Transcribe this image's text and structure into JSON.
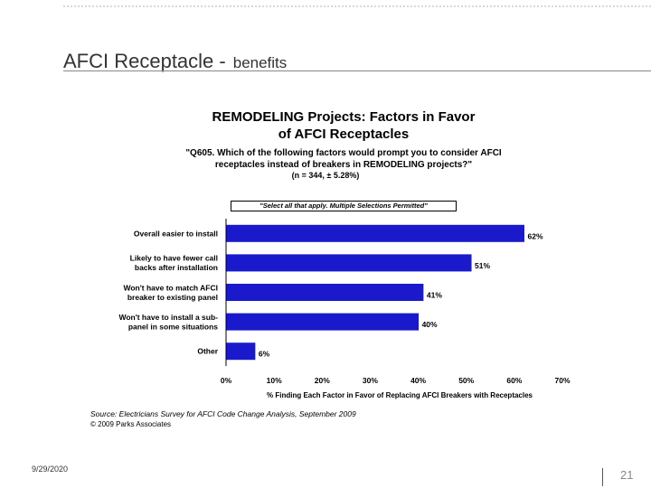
{
  "slide": {
    "title": "AFCI Receptacle -",
    "subtitle": "benefits",
    "date": "9/29/2020",
    "page_number": "21"
  },
  "chart_data": {
    "type": "bar",
    "orientation": "horizontal",
    "title_line1": "REMODELING Projects: Factors in Favor",
    "title_line2": "of AFCI Receptacles",
    "question_line1": "\"Q605. Which of the following factors would prompt you to consider AFCI",
    "question_line2": "receptacles instead of breakers in REMODELING projects?\"",
    "sample": "(n = 344, ± 5.28%)",
    "note": "\"Select all that apply. Multiple Selections Permitted\"",
    "categories": [
      [
        "Overall easier to install"
      ],
      [
        "Likely to have fewer call",
        "backs after installation"
      ],
      [
        "Won't have to match AFCI",
        "breaker to existing panel"
      ],
      [
        "Won't have to install a sub-",
        "panel in some situations"
      ],
      [
        "Other"
      ]
    ],
    "values": [
      62,
      51,
      41,
      40,
      6
    ],
    "value_labels": [
      "62%",
      "51%",
      "41%",
      "40%",
      "6%"
    ],
    "xlim": [
      0,
      70
    ],
    "x_ticks": [
      "0%",
      "10%",
      "20%",
      "30%",
      "40%",
      "50%",
      "60%",
      "70%"
    ],
    "xlabel": "% Finding Each Factor in Favor of Replacing AFCI Breakers with Receptacles",
    "bar_color": "#1a1acc",
    "source": "Source: Electricians Survey for AFCI Code Change Analysis, September 2009",
    "copyright": "© 2009 Parks Associates"
  }
}
